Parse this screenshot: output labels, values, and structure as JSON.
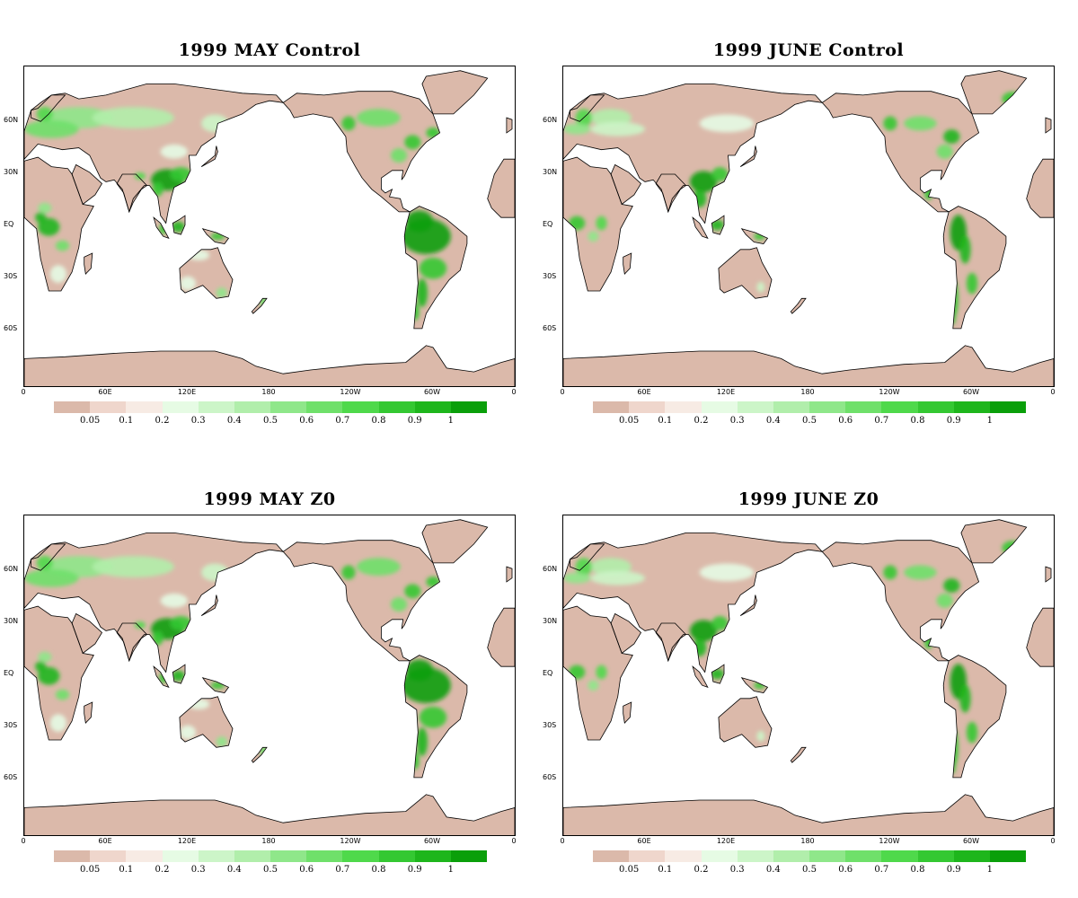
{
  "panels": [
    {
      "title": "1999 MAY Control",
      "variant": "may"
    },
    {
      "title": "1999 JUNE Control",
      "variant": "june"
    },
    {
      "title": "1999 MAY Z0",
      "variant": "may"
    },
    {
      "title": "1999 JUNE Z0",
      "variant": "june"
    }
  ],
  "lat_labels": [
    "60N",
    "30N",
    "EQ",
    "30S",
    "60S"
  ],
  "lon_labels": [
    "0",
    "60E",
    "120E",
    "180",
    "120W",
    "60W",
    "0"
  ],
  "colorbar": {
    "levels": [
      "0.05",
      "0.1",
      "0.2",
      "0.3",
      "0.4",
      "0.5",
      "0.6",
      "0.7",
      "0.8",
      "0.9",
      "1"
    ],
    "colors": [
      "#dbb9aa",
      "#efd6cc",
      "#f7ebe4",
      "#e6fbe4",
      "#ccf5c8",
      "#b1eeab",
      "#8fe78a",
      "#6fe06a",
      "#4fd94b",
      "#34c832",
      "#1eb61c",
      "#0a9f0a"
    ]
  },
  "colors": {
    "land_dry": "#dbb9aa",
    "land_moderate": "#f7ebe4",
    "vegetation_light": "#8fe78a",
    "vegetation_dense": "#1eb61c",
    "ocean": "#ffffff"
  }
}
